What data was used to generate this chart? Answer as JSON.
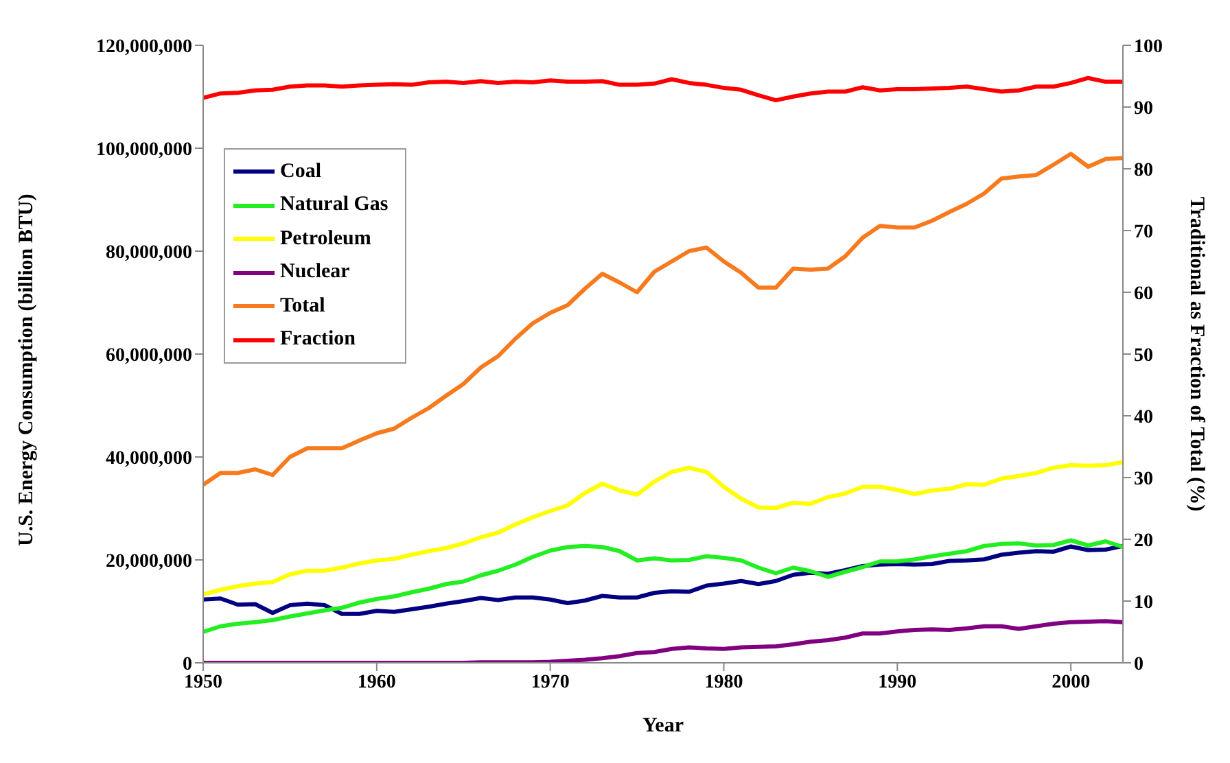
{
  "chart_data": {
    "type": "line",
    "xlabel": "Year",
    "ylabel": "U.S. Energy Consumption (billion BTU)",
    "y2label": "Traditional as Fraction of Total (%)",
    "x": [
      1950,
      1951,
      1952,
      1953,
      1954,
      1955,
      1956,
      1957,
      1958,
      1959,
      1960,
      1961,
      1962,
      1963,
      1964,
      1965,
      1966,
      1967,
      1968,
      1969,
      1970,
      1971,
      1972,
      1973,
      1974,
      1975,
      1976,
      1977,
      1978,
      1979,
      1980,
      1981,
      1982,
      1983,
      1984,
      1985,
      1986,
      1987,
      1988,
      1989,
      1990,
      1991,
      1992,
      1993,
      1994,
      1995,
      1996,
      1997,
      1998,
      1999,
      2000,
      2001,
      2002,
      2003
    ],
    "xlim": [
      1950,
      2003
    ],
    "xticks": [
      1950,
      1960,
      1970,
      1980,
      1990,
      2000
    ],
    "ylim": [
      0,
      120000000
    ],
    "yticks": [
      {
        "value": 0,
        "label": "0"
      },
      {
        "value": 20000000,
        "label": "20,000,000"
      },
      {
        "value": 40000000,
        "label": "40,000,000"
      },
      {
        "value": 60000000,
        "label": "60,000,000"
      },
      {
        "value": 80000000,
        "label": "80,000,000"
      },
      {
        "value": 100000000,
        "label": "100,000,000"
      },
      {
        "value": 120000000,
        "label": "120,000,000"
      }
    ],
    "y2lim": [
      0,
      100
    ],
    "y2ticks": [
      0,
      10,
      20,
      30,
      40,
      50,
      60,
      70,
      80,
      90,
      100
    ],
    "grid": false,
    "legend": "top left",
    "marker": "none",
    "line_style": "solid",
    "series": [
      {
        "name": "Coal",
        "color": "#000080",
        "values": [
          12300000,
          12500000,
          11300000,
          11400000,
          9700000,
          11200000,
          11500000,
          11200000,
          9500000,
          9500000,
          10100000,
          9900000,
          10400000,
          10900000,
          11500000,
          12000000,
          12600000,
          12200000,
          12700000,
          12700000,
          12300000,
          11600000,
          12100000,
          13000000,
          12700000,
          12700000,
          13600000,
          13900000,
          13800000,
          15000000,
          15400000,
          15900000,
          15300000,
          15900000,
          17100000,
          17500000,
          17300000,
          18000000,
          18800000,
          19100000,
          19200000,
          19100000,
          19200000,
          19800000,
          19900000,
          20100000,
          21000000,
          21400000,
          21700000,
          21600000,
          22600000,
          21900000,
          22000000,
          22700000
        ]
      },
      {
        "name": "Natural Gas",
        "color": "#22ee22",
        "values": [
          6000000,
          7100000,
          7600000,
          7900000,
          8300000,
          9000000,
          9600000,
          10200000,
          10700000,
          11700000,
          12400000,
          12900000,
          13700000,
          14400000,
          15300000,
          15800000,
          17000000,
          17900000,
          19100000,
          20600000,
          21800000,
          22500000,
          22700000,
          22500000,
          21700000,
          19900000,
          20300000,
          19900000,
          20000000,
          20700000,
          20400000,
          19900000,
          18500000,
          17400000,
          18500000,
          17800000,
          16700000,
          17700000,
          18600000,
          19700000,
          19700000,
          20100000,
          20700000,
          21200000,
          21700000,
          22700000,
          23100000,
          23200000,
          22800000,
          22900000,
          23800000,
          22800000,
          23600000,
          22500000
        ]
      },
      {
        "name": "Petroleum",
        "color": "#ffff00",
        "values": [
          13300000,
          14200000,
          14900000,
          15400000,
          15700000,
          17200000,
          17900000,
          17900000,
          18500000,
          19300000,
          19900000,
          20200000,
          21000000,
          21700000,
          22300000,
          23200000,
          24400000,
          25300000,
          26900000,
          28300000,
          29500000,
          30600000,
          33000000,
          34800000,
          33500000,
          32700000,
          35200000,
          37100000,
          37900000,
          37100000,
          34200000,
          31900000,
          30200000,
          30100000,
          31100000,
          30900000,
          32200000,
          32900000,
          34200000,
          34200000,
          33600000,
          32800000,
          33500000,
          33800000,
          34700000,
          34600000,
          35800000,
          36300000,
          36900000,
          37900000,
          38400000,
          38300000,
          38400000,
          39000000
        ]
      },
      {
        "name": "Nuclear",
        "color": "#800080",
        "values": [
          0,
          0,
          0,
          0,
          0,
          0,
          0,
          0,
          0,
          0,
          0,
          0,
          0,
          0,
          0,
          0,
          100000,
          100000,
          100000,
          100000,
          200000,
          400000,
          600000,
          900000,
          1300000,
          1900000,
          2100000,
          2700000,
          3000000,
          2800000,
          2700000,
          3000000,
          3100000,
          3200000,
          3600000,
          4100000,
          4400000,
          4900000,
          5700000,
          5700000,
          6100000,
          6400000,
          6500000,
          6400000,
          6700000,
          7100000,
          7100000,
          6600000,
          7100000,
          7600000,
          7900000,
          8000000,
          8100000,
          7900000
        ]
      },
      {
        "name": "Total",
        "color": "#f77a1e",
        "values": [
          34600000,
          36900000,
          36900000,
          37600000,
          36500000,
          40000000,
          41700000,
          41700000,
          41700000,
          43200000,
          44600000,
          45500000,
          47600000,
          49500000,
          51900000,
          54200000,
          57400000,
          59600000,
          63000000,
          66000000,
          68000000,
          69500000,
          72700000,
          75600000,
          73900000,
          72000000,
          76000000,
          78000000,
          80000000,
          80700000,
          78000000,
          75800000,
          72900000,
          72900000,
          76600000,
          76400000,
          76600000,
          79000000,
          82600000,
          84900000,
          84600000,
          84600000,
          85900000,
          87600000,
          89200000,
          91200000,
          94100000,
          94500000,
          94800000,
          96800000,
          98900000,
          96400000,
          97900000,
          98100000
        ]
      },
      {
        "name": "Fraction",
        "color": "#ff0000",
        "axis": "y2",
        "values": [
          91.5,
          92.2,
          92.3,
          92.7,
          92.8,
          93.3,
          93.5,
          93.5,
          93.3,
          93.5,
          93.6,
          93.7,
          93.6,
          94.0,
          94.1,
          93.9,
          94.2,
          93.9,
          94.1,
          94.0,
          94.3,
          94.1,
          94.1,
          94.2,
          93.6,
          93.6,
          93.8,
          94.5,
          93.9,
          93.6,
          93.1,
          92.8,
          91.9,
          91.1,
          91.7,
          92.2,
          92.5,
          92.5,
          93.2,
          92.7,
          92.9,
          92.9,
          93.0,
          93.1,
          93.3,
          92.9,
          92.5,
          92.7,
          93.3,
          93.3,
          93.9,
          94.7,
          94.1,
          94.1
        ]
      }
    ]
  }
}
